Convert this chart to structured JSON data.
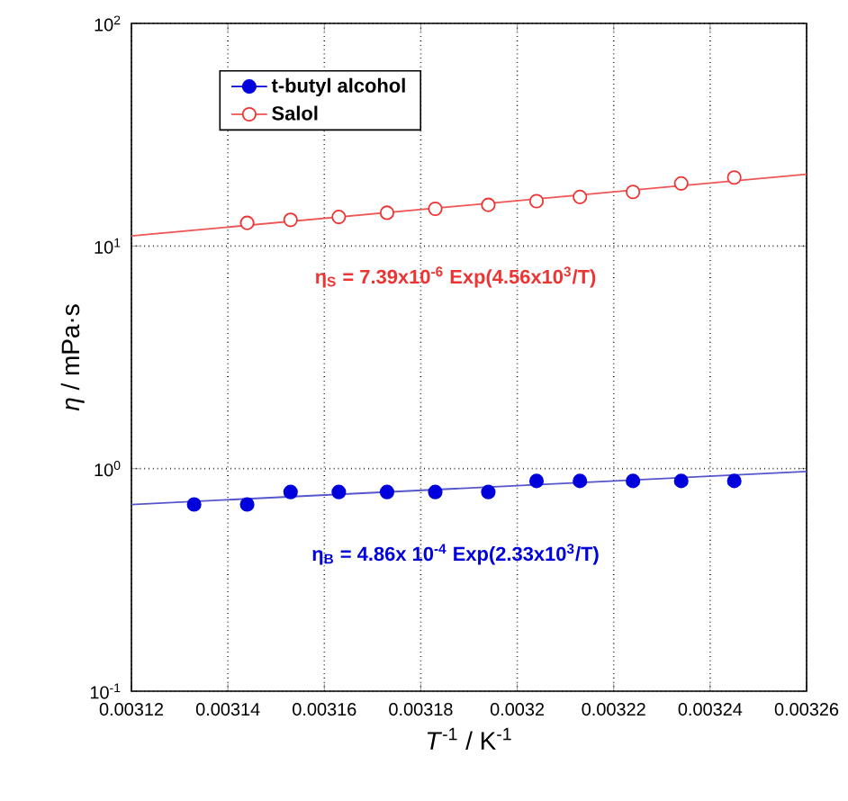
{
  "chart_data": {
    "type": "scatter",
    "xlabel": "*T*$^{-1}$ / K$^{-1}$",
    "ylabel": "*η* / mPa·s",
    "series": [
      {
        "name": "t-butyl alcohol",
        "color": "#0000dd",
        "x": [
          0.003133,
          0.003144,
          0.003153,
          0.003163,
          0.003173,
          0.003183,
          0.003194,
          0.003204,
          0.003213,
          0.003224,
          0.003234,
          0.003245
        ],
        "values": [
          0.69,
          0.69,
          0.785,
          0.785,
          0.785,
          0.785,
          0.785,
          0.88,
          0.88,
          0.88,
          0.88,
          0.88
        ]
      },
      {
        "name": "Salol",
        "color": "#ee3333",
        "x": [
          0.003144,
          0.003153,
          0.003163,
          0.003173,
          0.003183,
          0.003194,
          0.003204,
          0.003213,
          0.003224,
          0.003234,
          0.003245
        ],
        "values": [
          12.7,
          13.1,
          13.5,
          14.1,
          14.7,
          15.3,
          15.9,
          16.6,
          17.5,
          19.1,
          20.3
        ]
      },
      {
        "color": "#5555cc",
        "type": "line",
        "marker": "none",
        "x": [
          0.00312,
          0.00326
        ],
        "values": [
          0.69,
          0.97
        ]
      },
      {
        "color": "#ee5555",
        "type": "line",
        "marker": "none",
        "x": [
          0.00312,
          0.00326
        ],
        "values": [
          11.1,
          21.0
        ]
      }
    ],
    "annotations": [
      "η$_{S}$ = 7.39x10$^{-6}$ Exp(4.56x10$^{3}$/T)",
      "η$_{B}$ = 4.86x 10$^{-4}$ Exp(2.33x10$^{3}$/T)"
    ],
    "marker": "circle",
    "xlim": [
      0.00312,
      0.00326
    ],
    "xticks": [
      0.00312,
      0.00314,
      0.00316,
      0.00318,
      0.0032,
      0.00322,
      0.00324,
      0.00326
    ],
    "ylim": [
      0.1,
      100
    ],
    "yticks": [
      {
        "value": 0.1,
        "label": "10$^{-1}$"
      },
      {
        "value": 1,
        "label": "10$^{0}$"
      },
      {
        "value": 10,
        "label": "10$^{1}$"
      },
      {
        "value": 100,
        "label": "10$^{2}$"
      }
    ],
    "log": "y",
    "grid": true,
    "legend": "top left"
  }
}
